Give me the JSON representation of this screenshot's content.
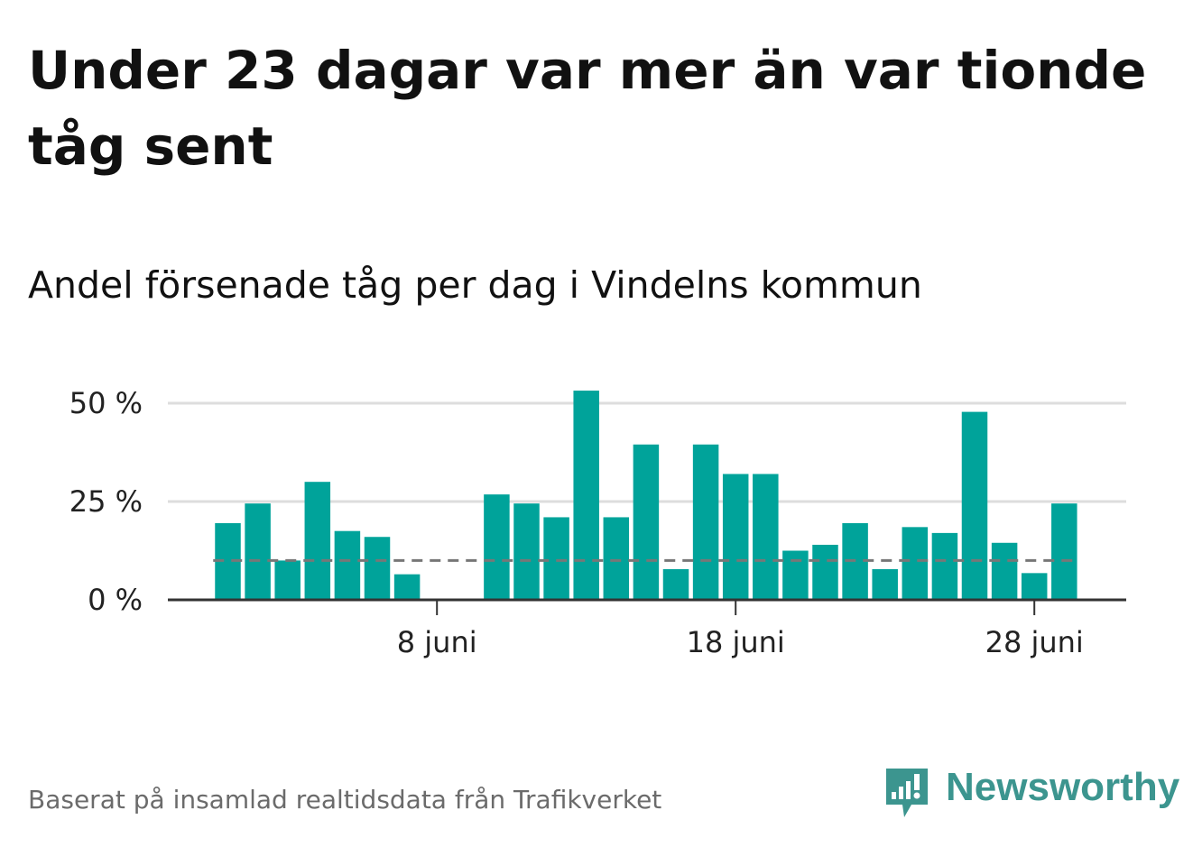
{
  "title": "Under 23 dagar var mer än var tionde tåg sent",
  "subtitle": "Andel försenade tåg per dag i Vindelns kommun",
  "footer": {
    "source": "Baserat på insamlad realtidsdata från Trafikverket"
  },
  "logo": {
    "text": "Newsworthy",
    "icon": "newsworthy-logo-icon"
  },
  "colors": {
    "bar": "#00a39a",
    "grid": "#dddddd",
    "axis": "#333333",
    "reference": "#777777",
    "brand": "#3c958f"
  },
  "chart_data": {
    "type": "bar",
    "title": "Andel försenade tåg per dag i Vindelns kommun",
    "xlabel": "",
    "ylabel": "",
    "unit": "%",
    "x_range": [
      1,
      30
    ],
    "ylim": [
      0,
      55
    ],
    "yticks": [
      0,
      25,
      50
    ],
    "ytick_labels": [
      "0 %",
      "25 %",
      "50 %"
    ],
    "xticks": [
      8,
      18,
      28
    ],
    "xtick_labels": [
      "8 juni",
      "18 juni",
      "28 juni"
    ],
    "reference_line": 10,
    "grid": true,
    "days": [
      1,
      2,
      3,
      4,
      5,
      6,
      7,
      8,
      9,
      10,
      11,
      12,
      13,
      14,
      15,
      16,
      17,
      18,
      19,
      20,
      21,
      22,
      23,
      24,
      25,
      26,
      27,
      28,
      29
    ],
    "values": [
      19.5,
      24.5,
      10.0,
      30.0,
      17.5,
      16.0,
      6.5,
      0,
      0,
      26.8,
      24.5,
      21.0,
      53.2,
      21.0,
      39.5,
      7.8,
      39.5,
      32.0,
      32.0,
      12.5,
      14.0,
      19.5,
      7.8,
      18.5,
      17.0,
      47.8,
      14.5,
      6.8,
      24.5
    ]
  }
}
